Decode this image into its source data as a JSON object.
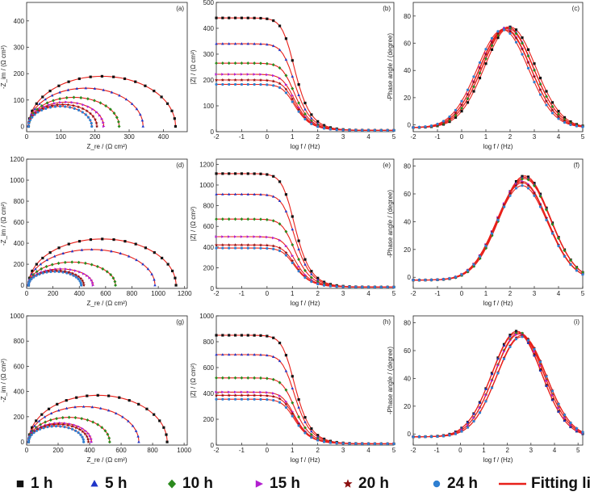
{
  "legend": [
    {
      "label": "1 h",
      "marker": "square",
      "color": "#111111"
    },
    {
      "label": "5 h",
      "marker": "triangle",
      "color": "#1f35c8"
    },
    {
      "label": "10 h",
      "marker": "diamond",
      "color": "#2b8a1e"
    },
    {
      "label": "15 h",
      "marker": "tri-right",
      "color": "#b21fd0"
    },
    {
      "label": "20 h",
      "marker": "star",
      "color": "#8b1010"
    },
    {
      "label": "24 h",
      "marker": "circle",
      "color": "#2e7fd1"
    },
    {
      "label": "Fitting lines",
      "marker": "line",
      "color": "#e8201a"
    }
  ],
  "chart_data": [
    {
      "panel": "(a)",
      "type": "nyquist",
      "xlabel": "Z_re / (Ω cm²)",
      "ylabel": "-Z_im / (Ω cm²)",
      "xlim": [
        0,
        470
      ],
      "ylim": [
        -20,
        470
      ],
      "xticks": [
        0,
        100,
        200,
        300,
        400
      ],
      "yticks": [
        0,
        100,
        200,
        300,
        400
      ],
      "series": [
        {
          "name": "1 h",
          "diameter": 430,
          "peak": 190
        },
        {
          "name": "5 h",
          "diameter": 335,
          "peak": 145
        },
        {
          "name": "10 h",
          "diameter": 265,
          "peak": 110
        },
        {
          "name": "15 h",
          "diameter": 220,
          "peak": 92
        },
        {
          "name": "20 h",
          "diameter": 200,
          "peak": 83
        },
        {
          "name": "24 h",
          "diameter": 185,
          "peak": 76
        }
      ]
    },
    {
      "panel": "(b)",
      "type": "bode_modulus",
      "xlabel": "log f / (Hz)",
      "ylabel": "|Z| / (Ω cm²)",
      "xlim": [
        -2,
        5
      ],
      "ylim": [
        0,
        500
      ],
      "xticks": [
        -2,
        -1,
        0,
        1,
        2,
        3,
        4,
        5
      ],
      "yticks": [
        0,
        100,
        200,
        300,
        400,
        500
      ],
      "series": [
        {
          "name": "1 h",
          "low_freq_value": 440
        },
        {
          "name": "5 h",
          "low_freq_value": 340
        },
        {
          "name": "10 h",
          "low_freq_value": 265
        },
        {
          "name": "15 h",
          "low_freq_value": 222
        },
        {
          "name": "20 h",
          "low_freq_value": 200
        },
        {
          "name": "24 h",
          "low_freq_value": 183
        }
      ]
    },
    {
      "panel": "(c)",
      "type": "bode_phase",
      "xlabel": "log f / (Hz)",
      "ylabel": "-Phase angle / (degree)",
      "xlim": [
        -2,
        5
      ],
      "ylim": [
        -5,
        90
      ],
      "xticks": [
        -2,
        -1,
        0,
        1,
        2,
        3,
        4,
        5
      ],
      "yticks": [
        0,
        20,
        40,
        60,
        80
      ],
      "series": [
        {
          "name": "1 h",
          "peak_log_f": 2.0,
          "peak_phase": 72
        },
        {
          "name": "5 h",
          "peak_log_f": 1.9,
          "peak_phase": 72
        },
        {
          "name": "10 h",
          "peak_log_f": 1.9,
          "peak_phase": 71
        },
        {
          "name": "15 h",
          "peak_log_f": 1.8,
          "peak_phase": 71
        },
        {
          "name": "20 h",
          "peak_log_f": 1.8,
          "peak_phase": 70
        },
        {
          "name": "24 h",
          "peak_log_f": 1.7,
          "peak_phase": 70
        }
      ]
    },
    {
      "panel": "(d)",
      "type": "nyquist",
      "xlabel": "Z_re / (Ω cm²)",
      "ylabel": "-Z_im / (Ω cm²)",
      "xlim": [
        0,
        1220
      ],
      "ylim": [
        -30,
        1200
      ],
      "xticks": [
        0,
        200,
        400,
        600,
        800,
        1000,
        1200
      ],
      "yticks": [
        0,
        200,
        400,
        600,
        800,
        1000,
        1200
      ],
      "series": [
        {
          "name": "1 h",
          "diameter": 1120,
          "peak": 440
        },
        {
          "name": "5 h",
          "diameter": 960,
          "peak": 340
        },
        {
          "name": "10 h",
          "diameter": 660,
          "peak": 220
        },
        {
          "name": "15 h",
          "diameter": 490,
          "peak": 155
        },
        {
          "name": "20 h",
          "diameter": 420,
          "peak": 140
        },
        {
          "name": "24 h",
          "diameter": 400,
          "peak": 130
        }
      ]
    },
    {
      "panel": "(e)",
      "type": "bode_modulus",
      "xlabel": "log f / (Hz)",
      "ylabel": "|Z| / (Ω cm²)",
      "xlim": [
        -2,
        5
      ],
      "ylim": [
        0,
        1250
      ],
      "xticks": [
        -2,
        -1,
        0,
        1,
        2,
        3,
        4,
        5
      ],
      "yticks": [
        0,
        200,
        400,
        600,
        800,
        1000,
        1200
      ],
      "series": [
        {
          "name": "1 h",
          "low_freq_value": 1110
        },
        {
          "name": "5 h",
          "low_freq_value": 910
        },
        {
          "name": "10 h",
          "low_freq_value": 670
        },
        {
          "name": "15 h",
          "low_freq_value": 500
        },
        {
          "name": "20 h",
          "low_freq_value": 420
        },
        {
          "name": "24 h",
          "low_freq_value": 390
        }
      ]
    },
    {
      "panel": "(f)",
      "type": "bode_phase",
      "xlabel": "log f / (Hz)",
      "ylabel": "-Phase angle / (degree)",
      "xlim": [
        -2,
        5
      ],
      "ylim": [
        -8,
        85
      ],
      "xticks": [
        -2,
        -1,
        0,
        1,
        2,
        3,
        4,
        5
      ],
      "yticks": [
        0,
        20,
        40,
        60,
        80
      ],
      "series": [
        {
          "name": "1 h",
          "peak_log_f": 2.6,
          "peak_phase": 73
        },
        {
          "name": "5 h",
          "peak_log_f": 2.6,
          "peak_phase": 72
        },
        {
          "name": "10 h",
          "peak_log_f": 2.6,
          "peak_phase": 71
        },
        {
          "name": "15 h",
          "peak_log_f": 2.5,
          "peak_phase": 69
        },
        {
          "name": "20 h",
          "peak_log_f": 2.5,
          "peak_phase": 68
        },
        {
          "name": "24 h",
          "peak_log_f": 2.5,
          "peak_phase": 66
        }
      ]
    },
    {
      "panel": "(g)",
      "type": "nyquist",
      "xlabel": "Z_re / (Ω cm²)",
      "ylabel": "-Z_im / (Ω cm²)",
      "xlim": [
        0,
        1020
      ],
      "ylim": [
        -25,
        1000
      ],
      "xticks": [
        0,
        200,
        400,
        600,
        800,
        1000
      ],
      "yticks": [
        0,
        200,
        400,
        600,
        800,
        1000
      ],
      "series": [
        {
          "name": "1 h",
          "diameter": 880,
          "peak": 370
        },
        {
          "name": "5 h",
          "diameter": 700,
          "peak": 280
        },
        {
          "name": "10 h",
          "diameter": 515,
          "peak": 195
        },
        {
          "name": "15 h",
          "diameter": 400,
          "peak": 150
        },
        {
          "name": "20 h",
          "diameter": 380,
          "peak": 140
        },
        {
          "name": "24 h",
          "diameter": 350,
          "peak": 125
        }
      ]
    },
    {
      "panel": "(h)",
      "type": "bode_modulus",
      "xlabel": "log f / (Hz)",
      "ylabel": "|Z| / (Ω cm²)",
      "xlim": [
        -2,
        5
      ],
      "ylim": [
        0,
        1000
      ],
      "xticks": [
        -2,
        -1,
        0,
        1,
        2,
        3,
        4,
        5
      ],
      "yticks": [
        0,
        200,
        400,
        600,
        800,
        1000
      ],
      "series": [
        {
          "name": "1 h",
          "low_freq_value": 850
        },
        {
          "name": "5 h",
          "low_freq_value": 700
        },
        {
          "name": "10 h",
          "low_freq_value": 520
        },
        {
          "name": "15 h",
          "low_freq_value": 410
        },
        {
          "name": "20 h",
          "low_freq_value": 385
        },
        {
          "name": "24 h",
          "low_freq_value": 355
        }
      ]
    },
    {
      "panel": "(i)",
      "type": "bode_phase",
      "xlabel": "log f / (Hz)",
      "ylabel": "-Phase angle / (degree)",
      "xlim": [
        -2,
        5.2
      ],
      "ylim": [
        -8,
        85
      ],
      "xticks": [
        -2,
        -1,
        0,
        1,
        2,
        3,
        4,
        5
      ],
      "yticks": [
        0,
        20,
        40,
        60,
        80
      ],
      "series": [
        {
          "name": "1 h",
          "peak_log_f": 2.4,
          "peak_phase": 74
        },
        {
          "name": "5 h",
          "peak_log_f": 2.4,
          "peak_phase": 73
        },
        {
          "name": "10 h",
          "peak_log_f": 2.5,
          "peak_phase": 73
        },
        {
          "name": "15 h",
          "peak_log_f": 2.5,
          "peak_phase": 72
        },
        {
          "name": "20 h",
          "peak_log_f": 2.6,
          "peak_phase": 71
        },
        {
          "name": "24 h",
          "peak_log_f": 2.6,
          "peak_phase": 70
        }
      ]
    }
  ]
}
